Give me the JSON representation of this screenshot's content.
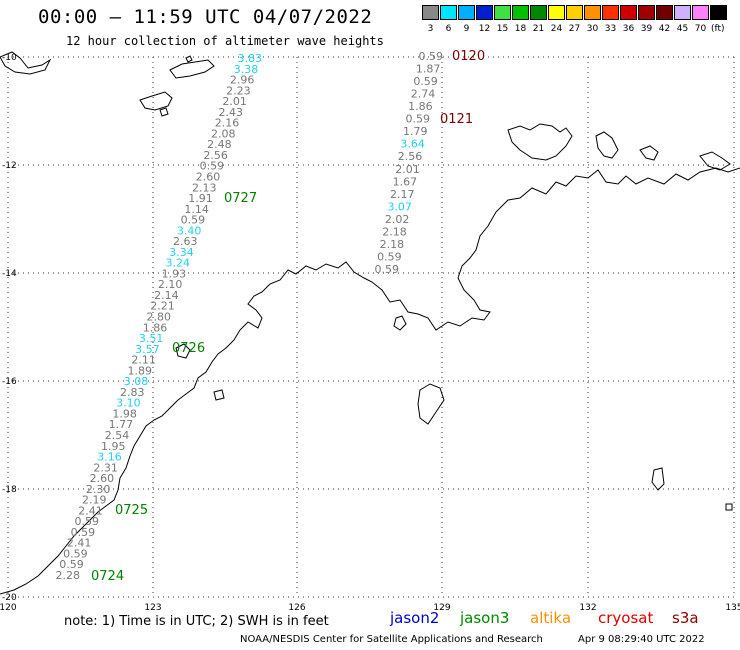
{
  "header": {
    "title": "00:00 — 11:59 UTC 04/07/2022",
    "subtitle": "12 hour collection of altimeter wave heights"
  },
  "color_scale": {
    "unit": "(ft)",
    "bins": [
      {
        "label": "3",
        "color": "#888888"
      },
      {
        "label": "6",
        "color": "#00e5ff"
      },
      {
        "label": "9",
        "color": "#00b0ff"
      },
      {
        "label": "12",
        "color": "#0020d0"
      },
      {
        "label": "15",
        "color": "#40e040"
      },
      {
        "label": "18",
        "color": "#00c000"
      },
      {
        "label": "21",
        "color": "#008800"
      },
      {
        "label": "24",
        "color": "#ffff00"
      },
      {
        "label": "27",
        "color": "#ffd000"
      },
      {
        "label": "30",
        "color": "#ff9000"
      },
      {
        "label": "33",
        "color": "#ff3000"
      },
      {
        "label": "36",
        "color": "#d00000"
      },
      {
        "label": "39",
        "color": "#a00000"
      },
      {
        "label": "42",
        "color": "#700000"
      },
      {
        "label": "45",
        "color": "#d0b0ff"
      },
      {
        "label": "70",
        "color": "#ff80ff"
      },
      {
        "label": "",
        "color": "#000000"
      }
    ]
  },
  "axes": {
    "lat_labels": [
      "-10",
      "-12",
      "-14",
      "-16",
      "-18",
      "-20"
    ],
    "lon_labels": [
      "120",
      "123",
      "126",
      "129",
      "132",
      "135"
    ]
  },
  "tracks": [
    {
      "values": [
        {
          "v": "3.83",
          "c": "cyan"
        },
        {
          "v": "3.38",
          "c": "cyan"
        },
        {
          "v": "2.96",
          "c": "gray"
        },
        {
          "v": "2.23",
          "c": "gray"
        },
        {
          "v": "2.01",
          "c": "gray"
        },
        {
          "v": "2.43",
          "c": "gray"
        },
        {
          "v": "2.16",
          "c": "gray"
        },
        {
          "v": "2.08",
          "c": "gray"
        },
        {
          "v": "2.48",
          "c": "gray"
        },
        {
          "v": "2.56",
          "c": "gray"
        },
        {
          "v": "0.59",
          "c": "gray"
        },
        {
          "v": "2.60",
          "c": "gray"
        },
        {
          "v": "2.13",
          "c": "gray"
        },
        {
          "v": "1.91",
          "c": "gray"
        },
        {
          "v": "1.14",
          "c": "gray"
        },
        {
          "v": "0.59",
          "c": "gray"
        },
        {
          "v": "3.40",
          "c": "cyan"
        },
        {
          "v": "2.63",
          "c": "gray"
        },
        {
          "v": "3.34",
          "c": "cyan"
        },
        {
          "v": "3.24",
          "c": "cyan"
        },
        {
          "v": "1.93",
          "c": "gray"
        },
        {
          "v": "2.10",
          "c": "gray"
        },
        {
          "v": "2.14",
          "c": "gray"
        },
        {
          "v": "2.21",
          "c": "gray"
        },
        {
          "v": "2.80",
          "c": "gray"
        },
        {
          "v": "1.86",
          "c": "gray"
        },
        {
          "v": "3.51",
          "c": "cyan"
        },
        {
          "v": "3.57",
          "c": "cyan"
        },
        {
          "v": "2.11",
          "c": "gray"
        },
        {
          "v": "1.89",
          "c": "gray"
        },
        {
          "v": "3.08",
          "c": "cyan"
        },
        {
          "v": "2.83",
          "c": "gray"
        },
        {
          "v": "3.10",
          "c": "cyan"
        },
        {
          "v": "1.98",
          "c": "gray"
        },
        {
          "v": "1.77",
          "c": "gray"
        },
        {
          "v": "2.54",
          "c": "gray"
        },
        {
          "v": "1.95",
          "c": "gray"
        },
        {
          "v": "3.16",
          "c": "cyan"
        },
        {
          "v": "2.31",
          "c": "gray"
        },
        {
          "v": "2.60",
          "c": "gray"
        },
        {
          "v": "2.30",
          "c": "gray"
        },
        {
          "v": "2.19",
          "c": "gray"
        },
        {
          "v": "2.41",
          "c": "gray"
        },
        {
          "v": "0.59",
          "c": "gray"
        },
        {
          "v": "0.59",
          "c": "gray"
        },
        {
          "v": "2.41",
          "c": "gray"
        },
        {
          "v": "0.59",
          "c": "gray"
        },
        {
          "v": "0.59",
          "c": "gray"
        },
        {
          "v": "2.28",
          "c": "gray"
        }
      ],
      "times": [
        "0727",
        "0726",
        "0725",
        "0724"
      ]
    },
    {
      "values": [
        {
          "v": "0.59",
          "c": "gray"
        },
        {
          "v": "1.87",
          "c": "gray"
        },
        {
          "v": "0.59",
          "c": "gray"
        },
        {
          "v": "2.74",
          "c": "gray"
        },
        {
          "v": "1.86",
          "c": "gray"
        },
        {
          "v": "0.59",
          "c": "gray"
        },
        {
          "v": "1.79",
          "c": "gray"
        },
        {
          "v": "3.64",
          "c": "cyan"
        },
        {
          "v": "2.56",
          "c": "gray"
        },
        {
          "v": "2.01",
          "c": "gray"
        },
        {
          "v": "1.67",
          "c": "gray"
        },
        {
          "v": "2.17",
          "c": "gray"
        },
        {
          "v": "3.07",
          "c": "cyan"
        },
        {
          "v": "2.02",
          "c": "gray"
        },
        {
          "v": "2.18",
          "c": "gray"
        },
        {
          "v": "2.18",
          "c": "gray"
        },
        {
          "v": "0.59",
          "c": "gray"
        },
        {
          "v": "0.59",
          "c": "gray"
        }
      ],
      "times": [
        "0120",
        "0121"
      ]
    }
  ],
  "footer": {
    "note": "note:  1) Time is in UTC;  2) SWH is in feet",
    "satellites": [
      {
        "name": "jason2",
        "color": "#0000c8"
      },
      {
        "name": "jason3",
        "color": "#008800"
      },
      {
        "name": "altika",
        "color": "#ff9000"
      },
      {
        "name": "cryosat",
        "color": "#e00000"
      },
      {
        "name": "s3a",
        "color": "#8b0000"
      }
    ],
    "credit": "NOAA/NESDIS Center for Satellite Applications and Research",
    "timestamp": "Apr  9 08:29:40 UTC 2022"
  }
}
